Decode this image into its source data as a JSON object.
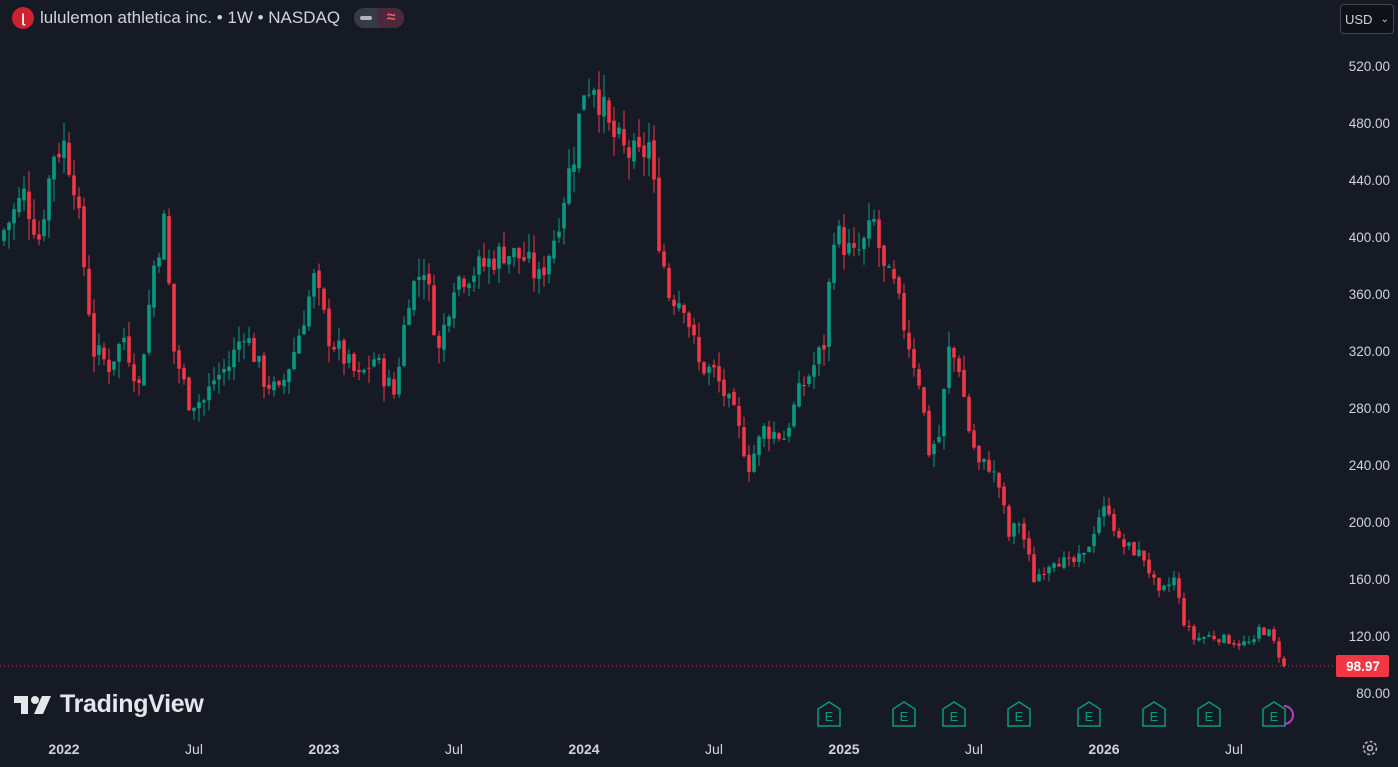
{
  "header": {
    "logo_letter": "ɭ",
    "title": "lululemon athletica inc. • 1W • NASDAQ",
    "wave_icon": "≈"
  },
  "currency": {
    "label": "USD"
  },
  "watermark": {
    "text": "TradingView"
  },
  "colors": {
    "background": "#161a25",
    "up": "#089981",
    "down": "#f23645",
    "text": "#d1d4dc",
    "earnings": "#089981",
    "last_price_line": "#f23645"
  },
  "chart_data": {
    "type": "candlestick",
    "timeframe": "1W",
    "ylim": [
      68,
      540
    ],
    "y_ticks": [
      {
        "value": 80,
        "label": "80.00"
      },
      {
        "value": 120,
        "label": "120.00"
      },
      {
        "value": 160,
        "label": "160.00"
      },
      {
        "value": 200,
        "label": "200.00"
      },
      {
        "value": 240,
        "label": "240.00"
      },
      {
        "value": 280,
        "label": "280.00"
      },
      {
        "value": 320,
        "label": "320.00"
      },
      {
        "value": 360,
        "label": "360.00"
      },
      {
        "value": 400,
        "label": "400.00"
      },
      {
        "value": 440,
        "label": "440.00"
      },
      {
        "value": 480,
        "label": "480.00"
      },
      {
        "value": 520,
        "label": "520.00"
      }
    ],
    "x_ticks": [
      {
        "index": 12,
        "label": "2022",
        "bold": true
      },
      {
        "index": 38,
        "label": "Jul",
        "bold": false
      },
      {
        "index": 64,
        "label": "2023",
        "bold": true
      },
      {
        "index": 90,
        "label": "Jul",
        "bold": false
      },
      {
        "index": 116,
        "label": "2024",
        "bold": true
      },
      {
        "index": 142,
        "label": "Jul",
        "bold": false
      },
      {
        "index": 168,
        "label": "2025",
        "bold": true
      },
      {
        "index": 194,
        "label": "Jul",
        "bold": false
      },
      {
        "index": 220,
        "label": "2026",
        "bold": true
      },
      {
        "index": 246,
        "label": "Jul",
        "bold": false
      }
    ],
    "last_price": {
      "value": 98.97,
      "label": "98.97"
    },
    "earnings_markers": [
      {
        "index": 165,
        "label": "E"
      },
      {
        "index": 180,
        "label": "E"
      },
      {
        "index": 190,
        "label": "E"
      },
      {
        "index": 203,
        "label": "E"
      },
      {
        "index": 217,
        "label": "E"
      },
      {
        "index": 230,
        "label": "E"
      },
      {
        "index": 241,
        "label": "E"
      },
      {
        "index": 254,
        "label": "E"
      }
    ],
    "anchors": [
      [
        0,
        405
      ],
      [
        4,
        430
      ],
      [
        7,
        400
      ],
      [
        10,
        460
      ],
      [
        12,
        465
      ],
      [
        14,
        440
      ],
      [
        16,
        380
      ],
      [
        18,
        320
      ],
      [
        21,
        310
      ],
      [
        24,
        330
      ],
      [
        27,
        295
      ],
      [
        30,
        380
      ],
      [
        32,
        410
      ],
      [
        34,
        320
      ],
      [
        37,
        285
      ],
      [
        40,
        285
      ],
      [
        42,
        300
      ],
      [
        45,
        310
      ],
      [
        48,
        335
      ],
      [
        52,
        300
      ],
      [
        55,
        290
      ],
      [
        58,
        320
      ],
      [
        62,
        370
      ],
      [
        65,
        330
      ],
      [
        68,
        315
      ],
      [
        71,
        300
      ],
      [
        74,
        315
      ],
      [
        78,
        290
      ],
      [
        81,
        360
      ],
      [
        84,
        380
      ],
      [
        87,
        320
      ],
      [
        90,
        370
      ],
      [
        93,
        375
      ],
      [
        96,
        380
      ],
      [
        100,
        390
      ],
      [
        104,
        385
      ],
      [
        107,
        370
      ],
      [
        110,
        400
      ],
      [
        114,
        460
      ],
      [
        116,
        505
      ],
      [
        118,
        510
      ],
      [
        121,
        475
      ],
      [
        124,
        460
      ],
      [
        127,
        455
      ],
      [
        129,
        465
      ],
      [
        131,
        400
      ],
      [
        133,
        360
      ],
      [
        136,
        355
      ],
      [
        139,
        310
      ],
      [
        142,
        305
      ],
      [
        146,
        275
      ],
      [
        149,
        240
      ],
      [
        152,
        265
      ],
      [
        156,
        260
      ],
      [
        159,
        290
      ],
      [
        162,
        310
      ],
      [
        164,
        325
      ],
      [
        166,
        405
      ],
      [
        168,
        395
      ],
      [
        170,
        385
      ],
      [
        172,
        395
      ],
      [
        174,
        410
      ],
      [
        176,
        375
      ],
      [
        178,
        365
      ],
      [
        181,
        325
      ],
      [
        183,
        300
      ],
      [
        185,
        250
      ],
      [
        187,
        260
      ],
      [
        189,
        320
      ],
      [
        191,
        310
      ],
      [
        193,
        265
      ],
      [
        195,
        240
      ],
      [
        197,
        240
      ],
      [
        199,
        225
      ],
      [
        201,
        190
      ],
      [
        203,
        200
      ],
      [
        204,
        188
      ],
      [
        206,
        160
      ],
      [
        210,
        175
      ],
      [
        213,
        170
      ],
      [
        216,
        175
      ],
      [
        219,
        205
      ],
      [
        221,
        210
      ],
      [
        223,
        185
      ],
      [
        226,
        180
      ],
      [
        228,
        175
      ],
      [
        231,
        148
      ],
      [
        234,
        160
      ],
      [
        236,
        130
      ],
      [
        238,
        118
      ],
      [
        241,
        120
      ],
      [
        244,
        118
      ],
      [
        247,
        115
      ],
      [
        250,
        115
      ],
      [
        251,
        125
      ],
      [
        253,
        122
      ],
      [
        254,
        115
      ],
      [
        256,
        98.97
      ]
    ]
  }
}
